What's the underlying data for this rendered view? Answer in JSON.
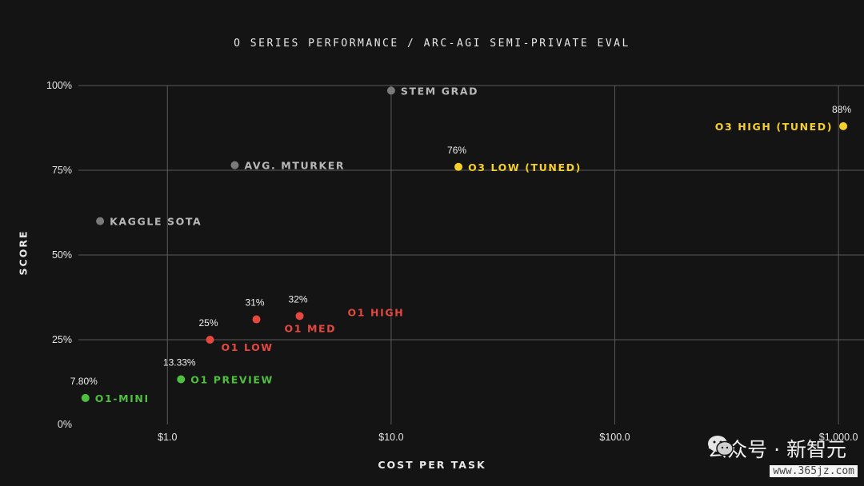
{
  "chart_data": {
    "type": "scatter",
    "title": "O SERIES PERFORMANCE / ARC-AGI SEMI-PRIVATE EVAL",
    "xlabel": "COST PER TASK",
    "ylabel": "SCORE",
    "x_scale": "log",
    "xlim": [
      0.4,
      1300
    ],
    "ylim": [
      0,
      100
    ],
    "x_ticks": [
      {
        "value": 1,
        "label": "$1.0"
      },
      {
        "value": 10,
        "label": "$10.0"
      },
      {
        "value": 100,
        "label": "$100.0"
      },
      {
        "value": 1000,
        "label": "$1,000.0"
      }
    ],
    "y_ticks": [
      {
        "value": 0,
        "label": "0%"
      },
      {
        "value": 25,
        "label": "25%"
      },
      {
        "value": 50,
        "label": "50%"
      },
      {
        "value": 75,
        "label": "75%"
      },
      {
        "value": 100,
        "label": "100%"
      }
    ],
    "grid": true,
    "colors": {
      "o3": "#f5cf2a",
      "o1": "#e5483f",
      "preview": "#4fbf3f",
      "human": "#7a7a7a",
      "human_label": "#b8b8b8",
      "grid": "#5a5a5a",
      "value_label": "#f0f0f0"
    },
    "points": [
      {
        "name": "O3 HIGH (TUNED)",
        "x": 1050,
        "y": 88,
        "value_label": "88%",
        "group": "o3"
      },
      {
        "name": "O3 LOW (TUNED)",
        "x": 20,
        "y": 76,
        "value_label": "76%",
        "group": "o3"
      },
      {
        "name": "STEM GRAD",
        "x": 10,
        "y": 98.5,
        "value_label": "",
        "group": "human"
      },
      {
        "name": "AVG. MTURKER",
        "x": 2,
        "y": 76.5,
        "value_label": "",
        "group": "human"
      },
      {
        "name": "KAGGLE SOTA",
        "x": 0.5,
        "y": 60,
        "value_label": "",
        "group": "human"
      },
      {
        "name": "O1 HIGH",
        "x": 3.9,
        "y": 32,
        "value_label": "32%",
        "group": "o1"
      },
      {
        "name": "O1 MED",
        "x": 2.5,
        "y": 31,
        "value_label": "31%",
        "group": "o1"
      },
      {
        "name": "O1 LOW",
        "x": 1.55,
        "y": 25,
        "value_label": "25%",
        "group": "o1"
      },
      {
        "name": "O1 PREVIEW",
        "x": 1.15,
        "y": 13.33,
        "value_label": "13.33%",
        "group": "preview"
      },
      {
        "name": "O1-MINI",
        "x": 0.43,
        "y": 7.8,
        "value_label": "7.80%",
        "group": "preview"
      }
    ]
  },
  "watermark": {
    "text": "公众号 · 新智元",
    "icon": "wechat-icon",
    "url": "www.365jz.com"
  }
}
